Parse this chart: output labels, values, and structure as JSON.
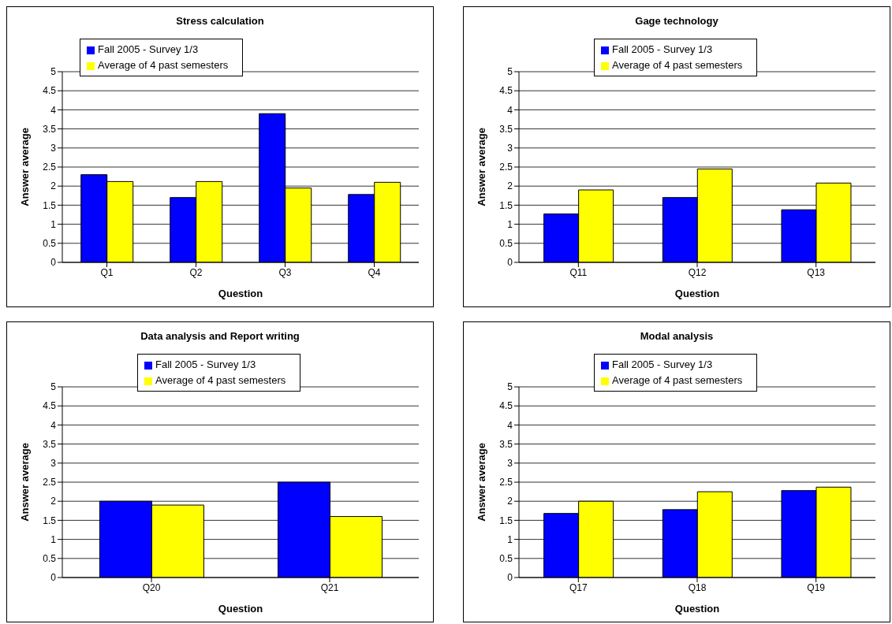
{
  "chart_data": [
    {
      "type": "bar",
      "title": "Stress calculation",
      "xlabel": "Question",
      "ylabel": "Answer average",
      "categories": [
        "Q1",
        "Q2",
        "Q3",
        "Q4"
      ],
      "series": [
        {
          "name": "Fall 2005 - Survey 1/3",
          "color": "#0000ff",
          "values": [
            2.3,
            1.7,
            3.9,
            1.78
          ]
        },
        {
          "name": "Average of 4 past semesters",
          "color": "#ffff00",
          "values": [
            2.12,
            2.12,
            1.95,
            2.1
          ]
        }
      ],
      "ylim": [
        0,
        5
      ],
      "yticks": [
        0,
        0.5,
        1,
        1.5,
        2,
        2.5,
        3,
        3.5,
        4,
        4.5,
        5
      ],
      "grid": "y",
      "legend": "top left"
    },
    {
      "type": "bar",
      "title": "Gage technology",
      "xlabel": "Question",
      "ylabel": "Answer average",
      "categories": [
        "Q11",
        "Q12",
        "Q13"
      ],
      "series": [
        {
          "name": "Fall 2005 - Survey 1/3",
          "color": "#0000ff",
          "values": [
            1.27,
            1.7,
            1.38
          ]
        },
        {
          "name": "Average of 4 past semesters",
          "color": "#ffff00",
          "values": [
            1.9,
            2.45,
            2.08
          ]
        }
      ],
      "ylim": [
        0,
        5
      ],
      "yticks": [
        0,
        0.5,
        1,
        1.5,
        2,
        2.5,
        3,
        3.5,
        4,
        4.5,
        5
      ],
      "grid": "y",
      "legend": "top"
    },
    {
      "type": "bar",
      "title": "Data analysis and Report writing",
      "xlabel": "Question",
      "ylabel": "Answer average",
      "categories": [
        "Q20",
        "Q21"
      ],
      "series": [
        {
          "name": "Fall 2005 - Survey 1/3",
          "color": "#0000ff",
          "values": [
            2.0,
            2.5
          ]
        },
        {
          "name": "Average of 4 past semesters",
          "color": "#ffff00",
          "values": [
            1.9,
            1.6
          ]
        }
      ],
      "ylim": [
        0,
        5
      ],
      "yticks": [
        0,
        0.5,
        1,
        1.5,
        2,
        2.5,
        3,
        3.5,
        4,
        4.5,
        5
      ],
      "grid": "y",
      "legend": "top"
    },
    {
      "type": "bar",
      "title": "Modal analysis",
      "xlabel": "Question",
      "ylabel": "Answer average",
      "categories": [
        "Q17",
        "Q18",
        "Q19"
      ],
      "series": [
        {
          "name": "Fall 2005 - Survey 1/3",
          "color": "#0000ff",
          "values": [
            1.68,
            1.78,
            2.28
          ]
        },
        {
          "name": "Average of 4 past semesters",
          "color": "#ffff00",
          "values": [
            2.0,
            2.25,
            2.37
          ]
        }
      ],
      "ylim": [
        0,
        5
      ],
      "yticks": [
        0,
        0.5,
        1,
        1.5,
        2,
        2.5,
        3,
        3.5,
        4,
        4.5,
        5
      ],
      "grid": "y",
      "legend": "top"
    }
  ]
}
